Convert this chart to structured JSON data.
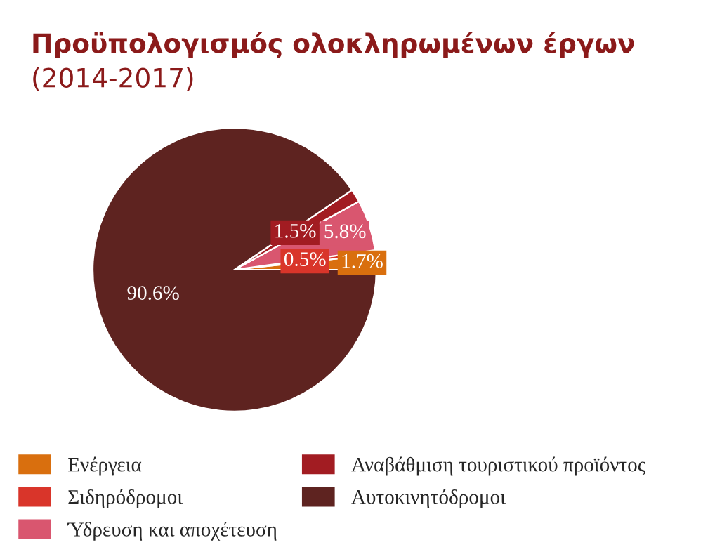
{
  "chart_data": {
    "type": "pie",
    "title": "Προϋπολογισμός ολοκληρωμένων έργων",
    "subtitle": "(2014-2017)",
    "categories": [
      "Ενέργεια",
      "Σιδηρόδρομοι",
      "Ύδρευση και αποχέτευση",
      "Αναβάθμιση τουριστικού προϊόντος",
      "Αυτοκινητόδρομοι"
    ],
    "values": [
      1.7,
      0.5,
      5.8,
      1.5,
      90.6
    ],
    "colors": [
      "#d96f0e",
      "#d9352a",
      "#d9566f",
      "#a21c22",
      "#5e2320"
    ],
    "value_labels": [
      "1.7%",
      "0.5%",
      "5.8%",
      "1.5%",
      "90.6%"
    ],
    "legend": "bottom"
  }
}
